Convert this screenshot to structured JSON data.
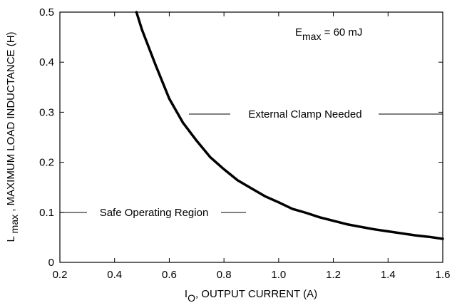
{
  "chart_data": {
    "type": "line",
    "xlabel_main": "I",
    "xlabel_sub": "O",
    "xlabel_rest": ", OUTPUT CURRENT (A)",
    "ylabel_main": "L",
    "ylabel_sub": " max",
    "ylabel_rest": " , MAXIMUM LOAD INDUCTANCE (H)",
    "xlim": [
      0.2,
      1.6
    ],
    "ylim": [
      0,
      0.5
    ],
    "x_ticks": [
      "0.2",
      "0.4",
      "0.6",
      "0.8",
      "1.0",
      "1.2",
      "1.4",
      "1.6"
    ],
    "y_ticks": [
      "0",
      "0.1",
      "0.2",
      "0.3",
      "0.4",
      "0.5"
    ],
    "grid": false,
    "series": [
      {
        "x": [
          0.48,
          0.5,
          0.55,
          0.6,
          0.65,
          0.7,
          0.75,
          0.8,
          0.85,
          0.9,
          0.95,
          1.0,
          1.05,
          1.1,
          1.15,
          1.2,
          1.25,
          1.3,
          1.35,
          1.4,
          1.45,
          1.5,
          1.55,
          1.6
        ],
        "y": [
          0.5,
          0.465,
          0.394,
          0.327,
          0.279,
          0.243,
          0.21,
          0.186,
          0.164,
          0.148,
          0.132,
          0.12,
          0.107,
          0.099,
          0.09,
          0.083,
          0.076,
          0.071,
          0.066,
          0.062,
          0.058,
          0.054,
          0.051,
          0.047
        ]
      }
    ],
    "annotations": {
      "emax_main": "E",
      "emax_sub": "max",
      "emax_rest": " = 60 mJ",
      "region_upper": "External Clamp Needed",
      "region_lower": "Safe Operating Region"
    }
  }
}
